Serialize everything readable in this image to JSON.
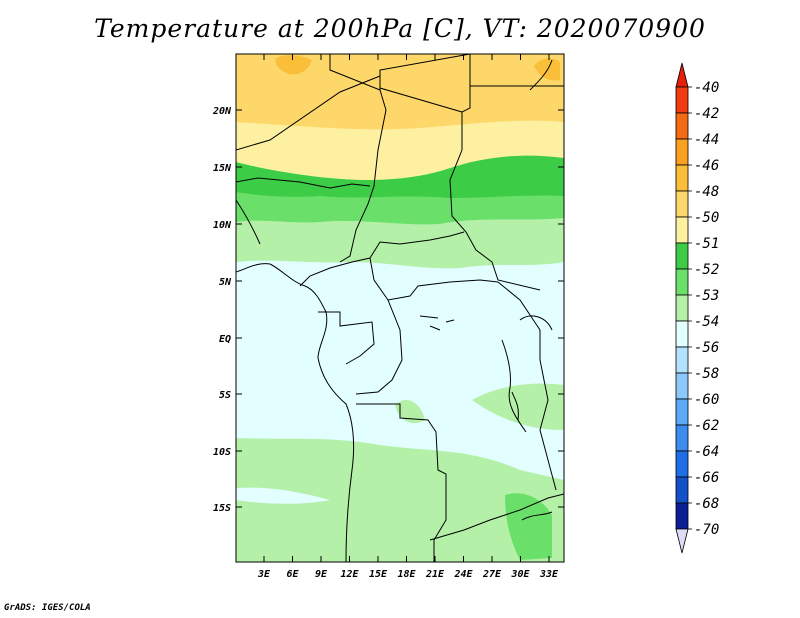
{
  "title": "Temperature at 200hPa [C], VT: 2020070900",
  "credit": "GrADS: IGES/COLA",
  "map": {
    "lat_ticks": [
      "20N",
      "15N",
      "10N",
      "5N",
      "EQ",
      "5S",
      "10S",
      "15S"
    ],
    "lon_ticks": [
      "3E",
      "6E",
      "9E",
      "12E",
      "15E",
      "18E",
      "21E",
      "24E",
      "27E",
      "30E",
      "33E"
    ]
  },
  "colorbar": {
    "levels": [
      "-40",
      "-42",
      "-44",
      "-46",
      "-48",
      "-50",
      "-51",
      "-52",
      "-53",
      "-54",
      "-56",
      "-58",
      "-60",
      "-62",
      "-64",
      "-66",
      "-68",
      "-70"
    ],
    "colors": [
      "#f03c10",
      "#f56a14",
      "#f9a020",
      "#fbbe38",
      "#fdd76a",
      "#fdf0a0",
      "#3dcc45",
      "#6ae06a",
      "#b4f0a8",
      "#e2fefe",
      "#b4e2fe",
      "#8cc8fa",
      "#5aaaf5",
      "#3c8cf0",
      "#1e6ee6",
      "#1450c8",
      "#0a1e96"
    ],
    "top_arrow_color": "#e61e0a",
    "bottom_arrow_color": "#dcdcf5"
  }
}
